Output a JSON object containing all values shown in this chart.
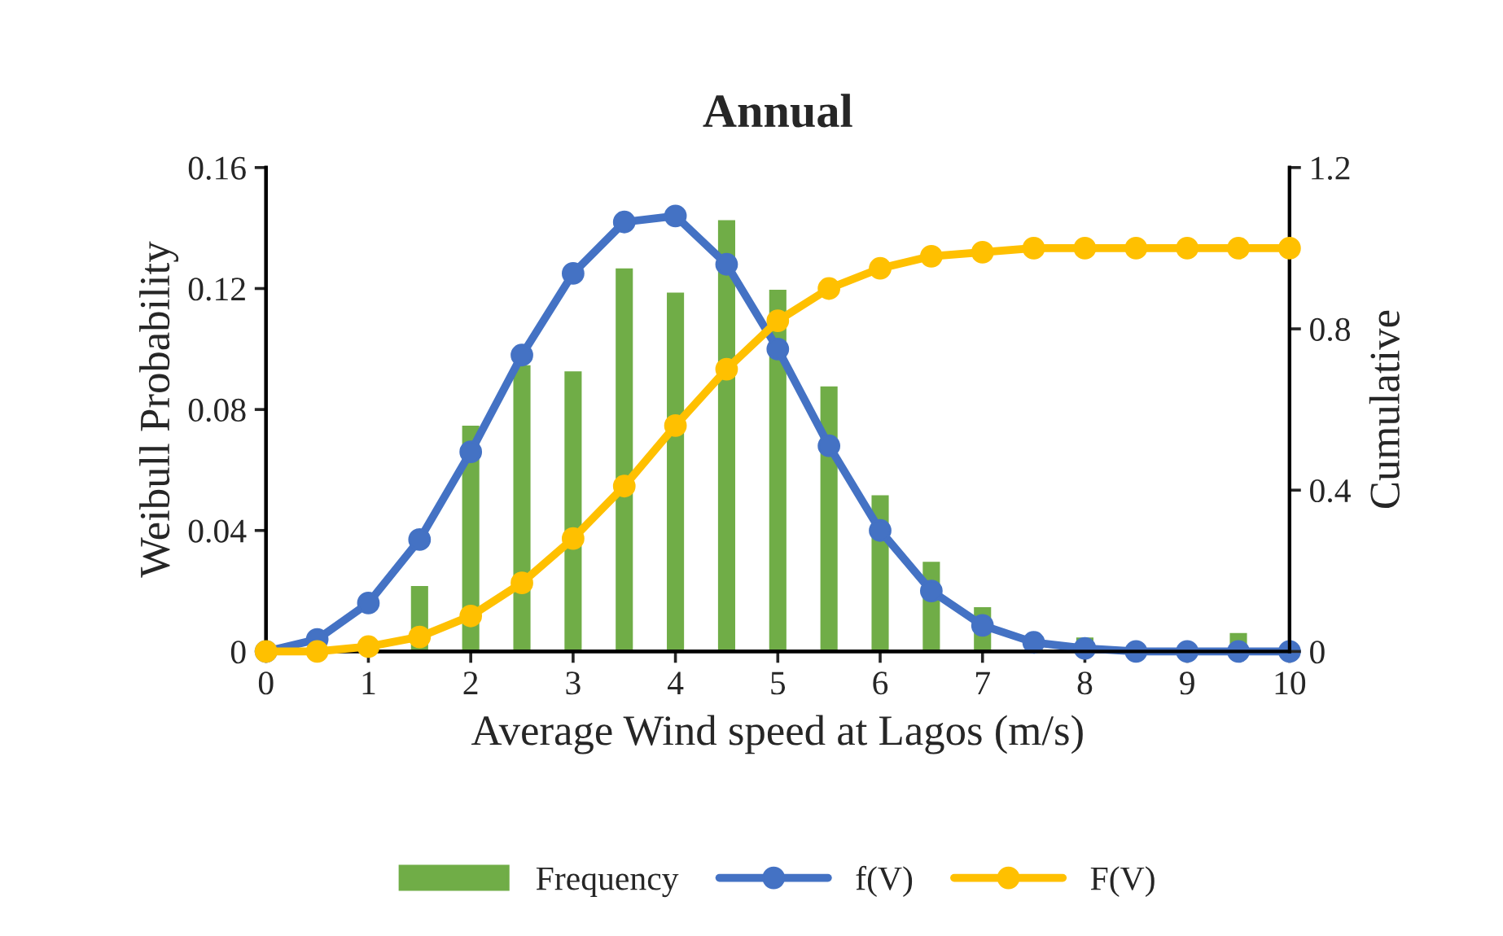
{
  "chart_data": {
    "type": "bar",
    "title": "Annual",
    "xlabel": "Average Wind speed at Lagos (m/s)",
    "ylabel": "Weibull Probability",
    "y2label": "Cumulative",
    "x": [
      0,
      0.5,
      1,
      1.5,
      2,
      2.5,
      3,
      3.5,
      4,
      4.5,
      5,
      5.5,
      6,
      6.5,
      7,
      7.5,
      8,
      8.5,
      9,
      9.5,
      10
    ],
    "series": [
      {
        "name": "Frequency",
        "color": "#70ad47",
        "values": [
          null,
          null,
          null,
          0.022,
          0.075,
          0.095,
          0.093,
          0.127,
          0.119,
          0.143,
          0.12,
          0.088,
          0.052,
          0.03,
          0.015,
          null,
          0.005,
          null,
          null,
          0.0065,
          null
        ]
      },
      {
        "name": "f(V)",
        "type": "line",
        "color": "#4472c4",
        "marker": "circle",
        "values": [
          0,
          0.004,
          0.016,
          0.037,
          0.066,
          0.098,
          0.125,
          0.142,
          0.144,
          0.128,
          0.1,
          0.068,
          0.04,
          0.02,
          0.0086,
          0.003,
          0.001,
          0,
          0,
          0,
          0
        ]
      },
      {
        "name": "F(V)",
        "type": "line",
        "color": "#ffc000",
        "marker": "circle",
        "axis": "y2",
        "values": [
          0,
          0,
          0.012,
          0.036,
          0.088,
          0.17,
          0.28,
          0.41,
          0.56,
          0.7,
          0.82,
          0.9,
          0.95,
          0.98,
          0.99,
          1.0,
          1.0,
          1.0,
          1.0,
          1.0,
          1.0
        ]
      }
    ],
    "xlim": [
      0,
      10
    ],
    "xticks": [
      0,
      1,
      2,
      3,
      4,
      5,
      6,
      7,
      8,
      9,
      10
    ],
    "ylim": [
      0,
      0.16
    ],
    "yticks": [
      0,
      0.04,
      0.08,
      0.12,
      0.16
    ],
    "y2lim": [
      0,
      1.2
    ],
    "y2ticks": [
      0,
      0.4,
      0.8,
      1.2
    ],
    "grid": false,
    "legend": "bottom"
  }
}
